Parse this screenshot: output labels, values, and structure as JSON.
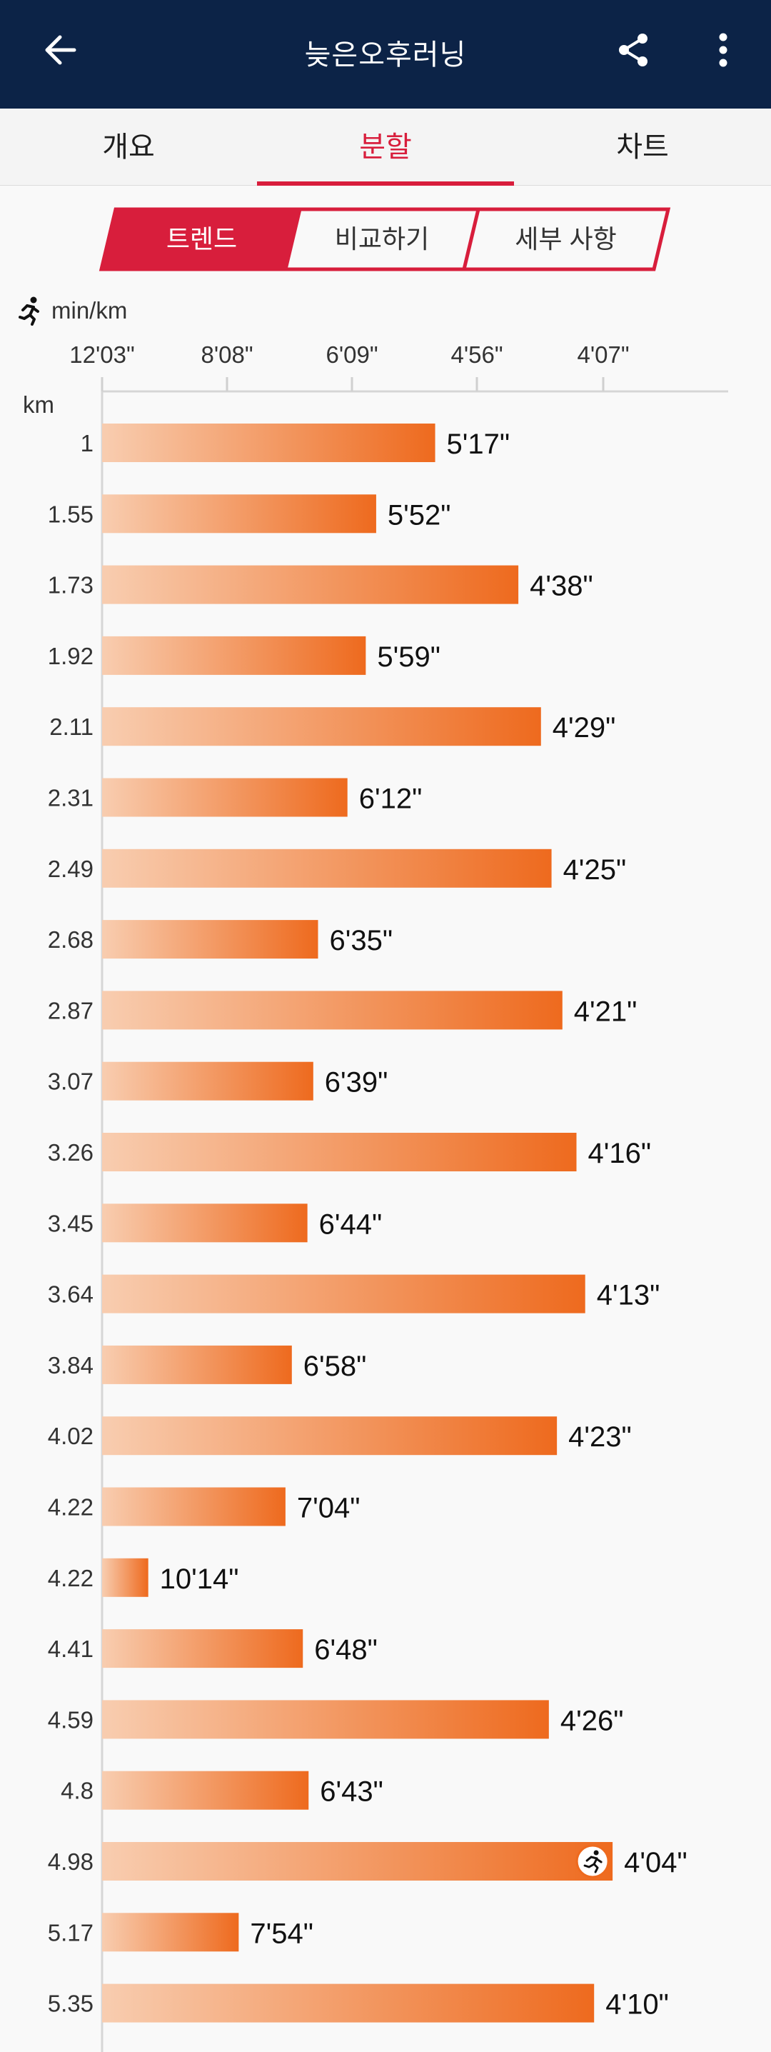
{
  "appbar": {
    "title": "늦은오후러닝",
    "back_icon": "arrow-back-icon",
    "share_icon": "share-icon",
    "more_icon": "more-vert-icon"
  },
  "tabs": [
    {
      "label": "개요",
      "active": false
    },
    {
      "label": "분할",
      "active": true
    },
    {
      "label": "차트",
      "active": false
    }
  ],
  "segments": [
    {
      "label": "트렌드",
      "active": true
    },
    {
      "label": "비교하기",
      "active": false
    },
    {
      "label": "세부 사항",
      "active": false
    }
  ],
  "colors": {
    "appbar": "#0c2347",
    "accent": "#d81e3c",
    "bar_start": "#f8cdb0",
    "bar_end": "#ee6a1e"
  },
  "chart_data": {
    "type": "bar",
    "orientation": "horizontal",
    "unit_label": "min/km",
    "unit_icon": "runner-icon",
    "axis_title": "km",
    "axis_ticks": [
      "12'03\"",
      "8'08\"",
      "6'09\"",
      "4'56\"",
      "4'07\""
    ],
    "rows": [
      {
        "km": "1",
        "pace": "5'17\""
      },
      {
        "km": "1.55",
        "pace": "5'52\""
      },
      {
        "km": "1.73",
        "pace": "4'38\""
      },
      {
        "km": "1.92",
        "pace": "5'59\""
      },
      {
        "km": "2.11",
        "pace": "4'29\""
      },
      {
        "km": "2.31",
        "pace": "6'12\""
      },
      {
        "km": "2.49",
        "pace": "4'25\""
      },
      {
        "km": "2.68",
        "pace": "6'35\""
      },
      {
        "km": "2.87",
        "pace": "4'21\""
      },
      {
        "km": "3.07",
        "pace": "6'39\""
      },
      {
        "km": "3.26",
        "pace": "4'16\""
      },
      {
        "km": "3.45",
        "pace": "6'44\""
      },
      {
        "km": "3.64",
        "pace": "4'13\""
      },
      {
        "km": "3.84",
        "pace": "6'58\""
      },
      {
        "km": "4.02",
        "pace": "4'23\""
      },
      {
        "km": "4.22",
        "pace": "7'04\""
      },
      {
        "km": "4.22",
        "pace": "10'14\""
      },
      {
        "km": "4.41",
        "pace": "6'48\""
      },
      {
        "km": "4.59",
        "pace": "4'26\""
      },
      {
        "km": "4.8",
        "pace": "6'43\""
      },
      {
        "km": "4.98",
        "pace": "4'04\"",
        "best": true
      },
      {
        "km": "5.17",
        "pace": "7'54\""
      },
      {
        "km": "5.35",
        "pace": "4'10\""
      }
    ],
    "best_marker_icon": "runner-badge-icon"
  }
}
